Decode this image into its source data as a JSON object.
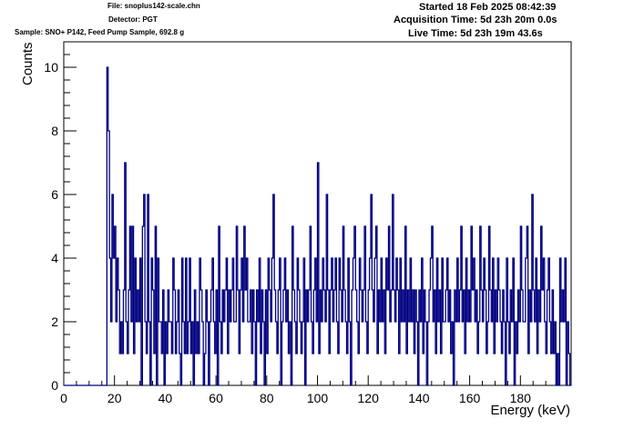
{
  "header": {
    "file": "File: snoplus142-scale.chn",
    "detector": "Detector: PGT",
    "sample": "Sample: SNO+ P142, Feed Pump Sample, 692.8 g",
    "started": "Started 18 Feb 2025 08:42:39",
    "acquisition_time": "Acquisition Time: 5d 23h 20m 0.0s",
    "live_time": "Live Time: 5d 23h 19m 43.6s"
  },
  "chart_data": {
    "type": "histogram",
    "xlabel": "Energy (keV)",
    "ylabel": "Counts",
    "xlim": [
      0,
      200
    ],
    "ylim": [
      0,
      10.8
    ],
    "x_ticks": [
      0,
      20,
      40,
      60,
      80,
      100,
      120,
      140,
      160,
      180
    ],
    "y_ticks": [
      0,
      2,
      4,
      6,
      8,
      10
    ],
    "grid": false,
    "line_color": "#000080",
    "bin_width": 0.5,
    "x_start": 17.0,
    "values": [
      10,
      8,
      4,
      2,
      6,
      4,
      5,
      2,
      4,
      3,
      1,
      2,
      1,
      3,
      7,
      2,
      1,
      3,
      5,
      2,
      5,
      1,
      4,
      2,
      3,
      2,
      4,
      0,
      5,
      6,
      2,
      1,
      6,
      2,
      0,
      4,
      3,
      1,
      5,
      0,
      4,
      2,
      2,
      1,
      3,
      0,
      2,
      1,
      3,
      2,
      2,
      1,
      4,
      3,
      1,
      2,
      3,
      1,
      0,
      4,
      2,
      1,
      4,
      1,
      2,
      4,
      1,
      2,
      0,
      3,
      1,
      2,
      1,
      4,
      3,
      2,
      0,
      1,
      3,
      2,
      0,
      2,
      3,
      4,
      2,
      1,
      3,
      0,
      5,
      2,
      1,
      3,
      2,
      3,
      4,
      1,
      3,
      2,
      3,
      4,
      2,
      2,
      5,
      3,
      1,
      3,
      4,
      2,
      5,
      3,
      4,
      2,
      2,
      3,
      1,
      3,
      2,
      0,
      3,
      2,
      4,
      1,
      3,
      2,
      0,
      3,
      1,
      4,
      3,
      2,
      4,
      6,
      3,
      2,
      1,
      3,
      4,
      0,
      2,
      3,
      4,
      2,
      3,
      1,
      2,
      0,
      5,
      3,
      2,
      1,
      4,
      3,
      2,
      1,
      2,
      4,
      0,
      3,
      2,
      3,
      5,
      2,
      1,
      3,
      4,
      2,
      7,
      1,
      3,
      2,
      4,
      3,
      2,
      6,
      3,
      1,
      3,
      4,
      2,
      3,
      4,
      2,
      1,
      4,
      3,
      2,
      5,
      3,
      2,
      1,
      4,
      2,
      0,
      3,
      4,
      5,
      3,
      2,
      1,
      4,
      3,
      2,
      3,
      5,
      2,
      1,
      3,
      4,
      6,
      3,
      2,
      4,
      5,
      1,
      3,
      2,
      4,
      2,
      3,
      1,
      4,
      3,
      5,
      2,
      3,
      6,
      3,
      2,
      4,
      3,
      1,
      4,
      2,
      3,
      2,
      5,
      1,
      3,
      2,
      4,
      2,
      3,
      1,
      3,
      2,
      0,
      3,
      2,
      4,
      1,
      3,
      2,
      0,
      2,
      3,
      4,
      5,
      2,
      3,
      1,
      4,
      2,
      3,
      1,
      4,
      2,
      2,
      3,
      4,
      2,
      3,
      1,
      2,
      0,
      3,
      2,
      4,
      2,
      3,
      5,
      2,
      3,
      1,
      4,
      2,
      3,
      2,
      5,
      3,
      4,
      2,
      3,
      1,
      2,
      5,
      3,
      2,
      4,
      3,
      1,
      2,
      5,
      3,
      2,
      4,
      1,
      3,
      2,
      4,
      3,
      2,
      1,
      3,
      2,
      0,
      4,
      2,
      1,
      3,
      2,
      4,
      0,
      2,
      1,
      3,
      2,
      5,
      3,
      2,
      2,
      4,
      5,
      1,
      3,
      2,
      6,
      3,
      2,
      4,
      1,
      3,
      2,
      5,
      3,
      4,
      2,
      1,
      3,
      4,
      2,
      1,
      3,
      1,
      2,
      0,
      1,
      0,
      4,
      2,
      3,
      2,
      4,
      0,
      2,
      1
    ]
  }
}
